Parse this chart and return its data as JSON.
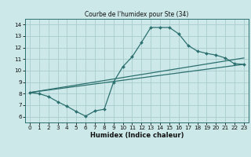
{
  "title": "Courbe de l'humidex pour Ste (34)",
  "xlabel": "Humidex (Indice chaleur)",
  "bg_color": "#cce8e8",
  "grid_color": "#aacccc",
  "line_color": "#2d7070",
  "xlim": [
    -0.5,
    23.5
  ],
  "ylim": [
    5.5,
    14.5
  ],
  "xticks": [
    0,
    1,
    2,
    3,
    4,
    5,
    6,
    7,
    8,
    9,
    10,
    11,
    12,
    13,
    14,
    15,
    16,
    17,
    18,
    19,
    20,
    21,
    22,
    23
  ],
  "yticks": [
    6,
    7,
    8,
    9,
    10,
    11,
    12,
    13,
    14
  ],
  "curve1_x": [
    0,
    1,
    2,
    3,
    4,
    5,
    6,
    7,
    8,
    9,
    10,
    11,
    12,
    13,
    14,
    15,
    16,
    17,
    18,
    19,
    20,
    21,
    22,
    23
  ],
  "curve1_y": [
    8.1,
    8.0,
    7.75,
    7.3,
    6.9,
    6.45,
    6.05,
    6.5,
    6.65,
    9.0,
    10.35,
    11.2,
    12.45,
    13.75,
    13.75,
    13.75,
    13.2,
    12.2,
    11.7,
    11.5,
    11.35,
    11.1,
    10.6,
    10.55
  ],
  "curve2_x": [
    0,
    23
  ],
  "curve2_y": [
    8.1,
    11.1
  ],
  "curve3_x": [
    0,
    23
  ],
  "curve3_y": [
    8.1,
    10.55
  ]
}
